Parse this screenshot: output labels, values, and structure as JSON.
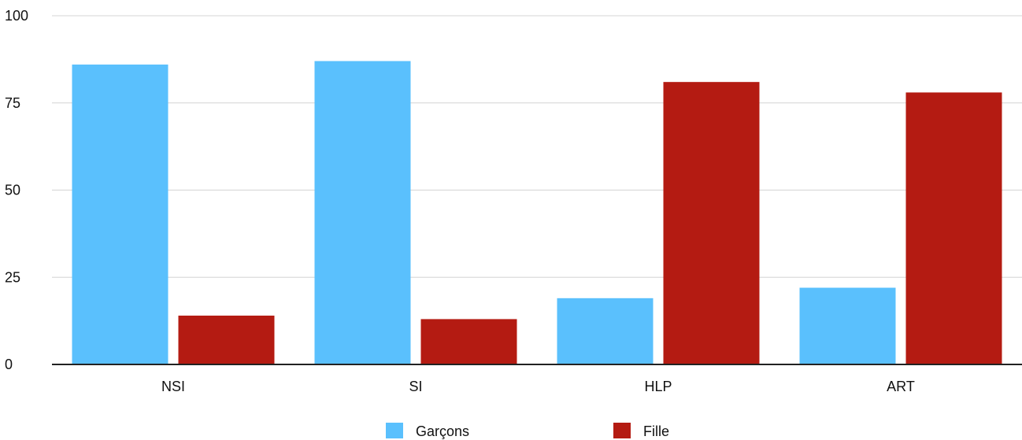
{
  "chart_data": {
    "type": "bar",
    "categories": [
      "NSI",
      "SI",
      "HLP",
      "ART"
    ],
    "series": [
      {
        "name": "Garçons",
        "values": [
          86,
          87,
          19,
          22
        ]
      },
      {
        "name": "Fille",
        "values": [
          14,
          13,
          81,
          78
        ]
      }
    ],
    "ylim": [
      0,
      100
    ],
    "yticks": [
      "0",
      "25",
      "50",
      "75",
      "100"
    ],
    "grid": true,
    "legend_position": "bottom",
    "colors": {
      "Garçons": "#5ac0fd",
      "Fille": "#b41b12"
    }
  }
}
